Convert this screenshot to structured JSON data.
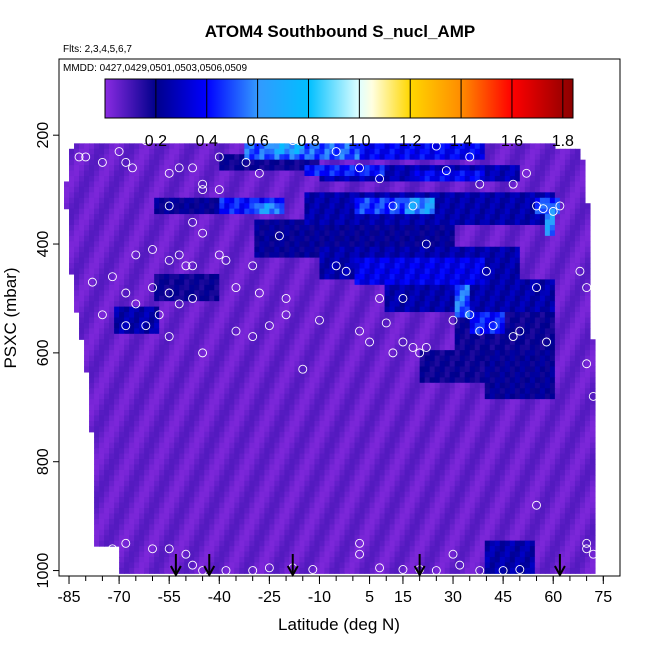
{
  "chart_data": {
    "type": "heatmap",
    "title": "ATOM4 Southbound S_nucl_AMP",
    "subtitle_flights": "Flts: 2,3,4,5,6,7",
    "subtitle_dates": "MMDD: 0427,0429,0501,0503,0506,0509",
    "xlabel": "Latitude (deg N)",
    "ylabel": "PSXC (mbar)",
    "xlim": [
      -88,
      80
    ],
    "ylim": [
      1010,
      60
    ],
    "x_ticks": [
      -85,
      -70,
      -55,
      -40,
      -25,
      -10,
      5,
      15,
      30,
      45,
      60,
      75
    ],
    "x_tick_labels": [
      "-85",
      "-70",
      "-55",
      "-40",
      "-25",
      "-10",
      "5",
      "15",
      "30",
      "45",
      "60",
      "75"
    ],
    "y_ticks": [
      200,
      400,
      600,
      800,
      1000
    ],
    "y_tick_labels": [
      "200",
      "400",
      "600",
      "800",
      "1000"
    ],
    "colorbar": {
      "range": [
        0,
        1.84
      ],
      "ticks": [
        0.2,
        0.4,
        0.6,
        0.8,
        1.0,
        1.2,
        1.4,
        1.6,
        1.8
      ],
      "tick_labels": [
        "0.2",
        "0.4",
        "0.6",
        "0.8",
        "1.0",
        "1.2",
        "1.4",
        "1.6",
        "1.8"
      ],
      "colors": [
        "#8a2be2",
        "#00008b",
        "#0000ff",
        "#3399ff",
        "#00bfff",
        "#e0ffff",
        "#ffffe0",
        "#ffd700",
        "#ff8c00",
        "#ff0000",
        "#8b0000"
      ],
      "color_stops": [
        0.0,
        0.2,
        0.4,
        0.6,
        0.8,
        1.0,
        1.05,
        1.2,
        1.4,
        1.6,
        1.84
      ]
    },
    "default_value": 0.05,
    "coverage": {
      "top_edge": [
        [
          -83,
          220
        ],
        [
          -51,
          220
        ],
        [
          -51,
          218
        ],
        [
          -37,
          218
        ],
        [
          -37,
          215
        ],
        [
          22,
          215
        ],
        [
          22,
          215
        ],
        [
          40,
          218
        ],
        [
          60,
          220
        ],
        [
          70,
          225
        ],
        [
          72,
          230
        ]
      ],
      "left_edge": [
        [
          220,
          -84
        ],
        [
          300,
          -86
        ],
        [
          420,
          -85
        ],
        [
          520,
          -83
        ],
        [
          620,
          -80
        ],
        [
          760,
          -78
        ],
        [
          880,
          -78
        ],
        [
          950,
          -77
        ],
        [
          1000,
          -76
        ]
      ],
      "right_edge": [
        [
          215,
          68
        ],
        [
          300,
          70
        ],
        [
          400,
          71
        ],
        [
          500,
          71
        ],
        [
          600,
          72
        ],
        [
          700,
          73
        ],
        [
          800,
          72
        ],
        [
          900,
          73
        ],
        [
          1000,
          73
        ]
      ]
    },
    "features": [
      {
        "lat": [
          -33,
          2
        ],
        "p": [
          215,
          240
        ],
        "value": 0.6
      },
      {
        "lat": [
          -25,
          -15
        ],
        "p": [
          215,
          235
        ],
        "value": 0.78
      },
      {
        "lat": [
          -8,
          40
        ],
        "p": [
          215,
          245
        ],
        "value": 0.45
      },
      {
        "lat": [
          -40,
          -10
        ],
        "p": [
          240,
          262
        ],
        "value": 0.22
      },
      {
        "lat": [
          -10,
          50
        ],
        "p": [
          255,
          280
        ],
        "value": 0.32
      },
      {
        "lat": [
          -15,
          10
        ],
        "p": [
          258,
          278
        ],
        "value": 0.5
      },
      {
        "lat": [
          18,
          40
        ],
        "p": [
          270,
          285
        ],
        "value": 0.45
      },
      {
        "lat": [
          -40,
          -20
        ],
        "p": [
          320,
          345
        ],
        "value": 0.5
      },
      {
        "lat": [
          -30,
          -22
        ],
        "p": [
          325,
          345
        ],
        "value": 0.72
      },
      {
        "lat": [
          -60,
          -40
        ],
        "p": [
          320,
          345
        ],
        "value": 0.25
      },
      {
        "lat": [
          -15,
          60
        ],
        "p": [
          310,
          360
        ],
        "value": 0.3
      },
      {
        "lat": [
          0,
          25
        ],
        "p": [
          320,
          340
        ],
        "value": 0.55
      },
      {
        "lat": [
          15,
          25
        ],
        "p": [
          320,
          340
        ],
        "value": 0.72
      },
      {
        "lat": [
          55,
          62
        ],
        "p": [
          320,
          345
        ],
        "value": 0.55
      },
      {
        "lat": [
          58,
          60
        ],
        "p": [
          330,
          380
        ],
        "value": 0.7
      },
      {
        "lat": [
          -30,
          30
        ],
        "p": [
          360,
          420
        ],
        "value": 0.25
      },
      {
        "lat": [
          -10,
          50
        ],
        "p": [
          410,
          460
        ],
        "value": 0.3
      },
      {
        "lat": [
          0,
          40
        ],
        "p": [
          430,
          470
        ],
        "value": 0.42
      },
      {
        "lat": [
          -60,
          -40
        ],
        "p": [
          460,
          500
        ],
        "value": 0.22
      },
      {
        "lat": [
          10,
          60
        ],
        "p": [
          470,
          520
        ],
        "value": 0.3
      },
      {
        "lat": [
          30,
          35
        ],
        "p": [
          480,
          530
        ],
        "value": 0.62
      },
      {
        "lat": [
          35,
          45
        ],
        "p": [
          525,
          560
        ],
        "value": 0.5
      },
      {
        "lat": [
          30,
          60
        ],
        "p": [
          520,
          600
        ],
        "value": 0.22
      },
      {
        "lat": [
          -72,
          -58
        ],
        "p": [
          520,
          560
        ],
        "value": 0.3
      },
      {
        "lat": [
          20,
          40
        ],
        "p": [
          600,
          650
        ],
        "value": 0.22
      },
      {
        "lat": [
          40,
          60
        ],
        "p": [
          600,
          680
        ],
        "value": 0.25
      },
      {
        "lat": [
          40,
          55
        ],
        "p": [
          950,
          1000
        ],
        "value": 0.3
      }
    ],
    "sample_points": [
      [
        -82,
        240
      ],
      [
        -80,
        240
      ],
      [
        -75,
        250
      ],
      [
        -70,
        230
      ],
      [
        -68,
        250
      ],
      [
        -66,
        260
      ],
      [
        -62,
        210
      ],
      [
        -58,
        200
      ],
      [
        -55,
        270
      ],
      [
        -52,
        260
      ],
      [
        -48,
        260
      ],
      [
        -45,
        290
      ],
      [
        -42,
        205
      ],
      [
        -40,
        240
      ],
      [
        -32,
        250
      ],
      [
        -28,
        270
      ],
      [
        -18,
        210
      ],
      [
        -16,
        210
      ],
      [
        -5,
        230
      ],
      [
        2,
        260
      ],
      [
        8,
        280
      ],
      [
        25,
        220
      ],
      [
        28,
        265
      ],
      [
        35,
        240
      ],
      [
        38,
        290
      ],
      [
        48,
        290
      ],
      [
        52,
        270
      ],
      [
        67,
        200
      ],
      [
        65,
        210
      ],
      [
        -55,
        330
      ],
      [
        -48,
        360
      ],
      [
        -45,
        300
      ],
      [
        -40,
        300
      ],
      [
        -22,
        385
      ],
      [
        12,
        330
      ],
      [
        18,
        330
      ],
      [
        22,
        400
      ],
      [
        55,
        330
      ],
      [
        57,
        335
      ],
      [
        62,
        330
      ],
      [
        60,
        340
      ],
      [
        -65,
        420
      ],
      [
        -60,
        410
      ],
      [
        -55,
        430
      ],
      [
        -52,
        420
      ],
      [
        -50,
        440
      ],
      [
        -48,
        440
      ],
      [
        -45,
        380
      ],
      [
        -40,
        420
      ],
      [
        -38,
        430
      ],
      [
        -30,
        440
      ],
      [
        -5,
        440
      ],
      [
        -2,
        450
      ],
      [
        8,
        500
      ],
      [
        15,
        500
      ],
      [
        40,
        450
      ],
      [
        55,
        480
      ],
      [
        68,
        450
      ],
      [
        70,
        480
      ],
      [
        -78,
        470
      ],
      [
        -72,
        460
      ],
      [
        -68,
        490
      ],
      [
        -65,
        510
      ],
      [
        -60,
        480
      ],
      [
        -55,
        490
      ],
      [
        -52,
        510
      ],
      [
        -48,
        500
      ],
      [
        -35,
        480
      ],
      [
        -28,
        490
      ],
      [
        -20,
        500
      ],
      [
        -10,
        540
      ],
      [
        2,
        560
      ],
      [
        5,
        580
      ],
      [
        10,
        545
      ],
      [
        15,
        580
      ],
      [
        22,
        590
      ],
      [
        30,
        540
      ],
      [
        35,
        530
      ],
      [
        38,
        560
      ],
      [
        42,
        550
      ],
      [
        50,
        560
      ],
      [
        58,
        580
      ],
      [
        -75,
        530
      ],
      [
        -68,
        550
      ],
      [
        -62,
        550
      ],
      [
        -58,
        530
      ],
      [
        -55,
        570
      ],
      [
        -45,
        600
      ],
      [
        -35,
        560
      ],
      [
        -30,
        570
      ],
      [
        -25,
        550
      ],
      [
        -20,
        530
      ],
      [
        -15,
        630
      ],
      [
        12,
        600
      ],
      [
        18,
        590
      ],
      [
        20,
        600
      ],
      [
        48,
        570
      ],
      [
        70,
        620
      ],
      [
        72,
        680
      ],
      [
        -72,
        960
      ],
      [
        -68,
        950
      ],
      [
        -60,
        960
      ],
      [
        -55,
        960
      ],
      [
        -50,
        970
      ],
      [
        -48,
        990
      ],
      [
        -45,
        1000
      ],
      [
        -38,
        1000
      ],
      [
        -30,
        1000
      ],
      [
        -25,
        995
      ],
      [
        -18,
        995
      ],
      [
        -12,
        998
      ],
      [
        2,
        950
      ],
      [
        2,
        970
      ],
      [
        8,
        995
      ],
      [
        15,
        998
      ],
      [
        20,
        998
      ],
      [
        25,
        1000
      ],
      [
        30,
        970
      ],
      [
        32,
        990
      ],
      [
        38,
        1000
      ],
      [
        45,
        1000
      ],
      [
        50,
        998
      ],
      [
        55,
        880
      ],
      [
        70,
        950
      ],
      [
        70,
        960
      ],
      [
        72,
        970
      ]
    ],
    "arrows_lat": [
      -53,
      -43,
      -18,
      20,
      62
    ]
  }
}
